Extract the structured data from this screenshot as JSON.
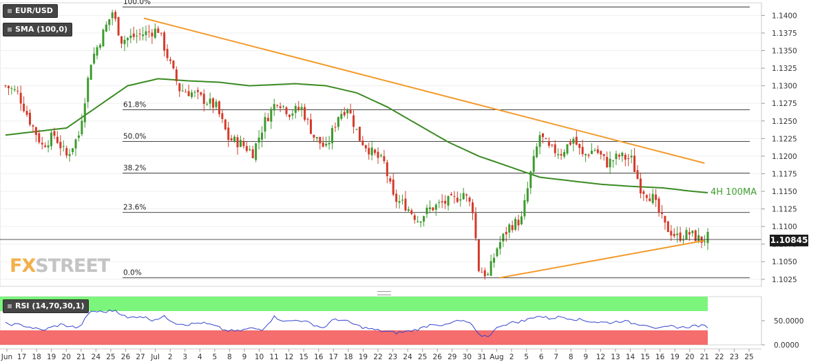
{
  "symbol_label": "EUR/USD",
  "sma_label": "SMA (100,0)",
  "rsi_label": "RSI (14,70,30,1)",
  "ma_annotation": "4H 100MA",
  "current_price": "1.10845",
  "logo": "FXSTREET",
  "colors": {
    "up_candle": "#3d9a2e",
    "down_candle": "#d43a2a",
    "sma": "#3a8a22",
    "trendline": "#f39a2a",
    "rsi_line": "#3344cc",
    "rsi_overbought": "#7cf57c",
    "rsi_oversold": "#f56d6d"
  },
  "chart_data": {
    "type": "candlestick",
    "ylim": [
      1.1015,
      1.1418
    ],
    "price_axis_ticks": [
      "1.1400",
      "1.1375",
      "1.1350",
      "1.1325",
      "1.1300",
      "1.1275",
      "1.1250",
      "1.1225",
      "1.1200",
      "1.1175",
      "1.1150",
      "1.1125",
      "1.1100",
      "1.1075",
      "1.1050",
      "1.1025"
    ],
    "date_ticks": [
      "Jun",
      "17",
      "18",
      "19",
      "20",
      "21",
      "24",
      "25",
      "26",
      "27",
      "Jul",
      "2",
      "3",
      "4",
      "5",
      "8",
      "9",
      "10",
      "11",
      "12",
      "15",
      "16",
      "17",
      "18",
      "19",
      "22",
      "23",
      "24",
      "25",
      "26",
      "29",
      "30",
      "31",
      "Aug",
      "2",
      "5",
      "6",
      "7",
      "8",
      "9",
      "12",
      "13",
      "14",
      "15",
      "16",
      "19",
      "20",
      "21",
      "22",
      "23",
      "25"
    ],
    "fib_levels": [
      {
        "label": "100.0%",
        "price": 1.1412
      },
      {
        "label": "61.8%",
        "price": 1.1266
      },
      {
        "label": "50.0%",
        "price": 1.1221
      },
      {
        "label": "38.2%",
        "price": 1.1176
      },
      {
        "label": "23.6%",
        "price": 1.112
      },
      {
        "label": "0.0%",
        "price": 1.1027
      }
    ],
    "close_anchors": [
      [
        0,
        1.13
      ],
      [
        4,
        1.129
      ],
      [
        8,
        1.125
      ],
      [
        12,
        1.1215
      ],
      [
        16,
        1.123
      ],
      [
        20,
        1.12
      ],
      [
        24,
        1.123
      ],
      [
        28,
        1.1335
      ],
      [
        32,
        1.1375
      ],
      [
        35,
        1.1405
      ],
      [
        38,
        1.1365
      ],
      [
        42,
        1.137
      ],
      [
        46,
        1.1375
      ],
      [
        50,
        1.138
      ],
      [
        54,
        1.133
      ],
      [
        57,
        1.1295
      ],
      [
        61,
        1.129
      ],
      [
        65,
        1.128
      ],
      [
        69,
        1.127
      ],
      [
        73,
        1.1225
      ],
      [
        77,
        1.1218
      ],
      [
        81,
        1.1205
      ],
      [
        85,
        1.125
      ],
      [
        89,
        1.128
      ],
      [
        93,
        1.1262
      ],
      [
        97,
        1.1268
      ],
      [
        101,
        1.1228
      ],
      [
        105,
        1.121
      ],
      [
        109,
        1.1258
      ],
      [
        112,
        1.127
      ],
      [
        116,
        1.1225
      ],
      [
        120,
        1.1205
      ],
      [
        124,
        1.119
      ],
      [
        127,
        1.114
      ],
      [
        131,
        1.113
      ],
      [
        135,
        1.111
      ],
      [
        139,
        1.1125
      ],
      [
        143,
        1.1133
      ],
      [
        147,
        1.1138
      ],
      [
        150,
        1.1148
      ],
      [
        153,
        1.1125
      ],
      [
        155,
        1.104
      ],
      [
        158,
        1.103
      ],
      [
        161,
        1.107
      ],
      [
        165,
        1.11
      ],
      [
        169,
        1.111
      ],
      [
        172,
        1.1175
      ],
      [
        175,
        1.123
      ],
      [
        178,
        1.121
      ],
      [
        182,
        1.1205
      ],
      [
        186,
        1.1225
      ],
      [
        189,
        1.12
      ],
      [
        193,
        1.121
      ],
      [
        197,
        1.119
      ],
      [
        201,
        1.12
      ],
      [
        205,
        1.1195
      ],
      [
        208,
        1.1155
      ],
      [
        212,
        1.114
      ],
      [
        216,
        1.11
      ],
      [
        220,
        1.1085
      ],
      [
        224,
        1.109
      ],
      [
        228,
        1.108
      ],
      [
        230,
        1.1085
      ]
    ],
    "sma_anchors": [
      [
        0,
        1.123
      ],
      [
        20,
        1.124
      ],
      [
        30,
        1.127
      ],
      [
        40,
        1.13
      ],
      [
        50,
        1.131
      ],
      [
        60,
        1.1307
      ],
      [
        70,
        1.1305
      ],
      [
        80,
        1.13
      ],
      [
        95,
        1.1303
      ],
      [
        105,
        1.13
      ],
      [
        115,
        1.129
      ],
      [
        125,
        1.127
      ],
      [
        135,
        1.1245
      ],
      [
        145,
        1.122
      ],
      [
        155,
        1.12
      ],
      [
        165,
        1.1185
      ],
      [
        175,
        1.117
      ],
      [
        185,
        1.1165
      ],
      [
        195,
        1.116
      ],
      [
        205,
        1.1157
      ],
      [
        215,
        1.1155
      ],
      [
        225,
        1.115
      ],
      [
        230,
        1.1148
      ]
    ],
    "trendlines": [
      {
        "from": [
          1.1396,
          "Jun 27"
        ],
        "to": [
          1.119,
          "Aug 21"
        ]
      },
      {
        "from": [
          1.1027,
          "Aug 1"
        ],
        "to": [
          1.108,
          "Aug 21"
        ]
      }
    ],
    "rsi": {
      "levels": [
        70,
        30
      ],
      "ticks": [
        "50.0000",
        "0.0000"
      ],
      "ylim": [
        0,
        100
      ],
      "anchors": [
        [
          0,
          44
        ],
        [
          6,
          40
        ],
        [
          12,
          30
        ],
        [
          18,
          42
        ],
        [
          24,
          35
        ],
        [
          28,
          70
        ],
        [
          32,
          68
        ],
        [
          36,
          72
        ],
        [
          40,
          55
        ],
        [
          44,
          60
        ],
        [
          48,
          52
        ],
        [
          52,
          58
        ],
        [
          56,
          45
        ],
        [
          60,
          42
        ],
        [
          64,
          46
        ],
        [
          68,
          40
        ],
        [
          72,
          30
        ],
        [
          76,
          28
        ],
        [
          80,
          34
        ],
        [
          84,
          32
        ],
        [
          88,
          58
        ],
        [
          92,
          48
        ],
        [
          96,
          52
        ],
        [
          100,
          44
        ],
        [
          104,
          35
        ],
        [
          108,
          54
        ],
        [
          112,
          48
        ],
        [
          116,
          38
        ],
        [
          120,
          32
        ],
        [
          124,
          28
        ],
        [
          128,
          25
        ],
        [
          132,
          28
        ],
        [
          136,
          34
        ],
        [
          140,
          44
        ],
        [
          144,
          40
        ],
        [
          148,
          50
        ],
        [
          152,
          46
        ],
        [
          155,
          20
        ],
        [
          158,
          18
        ],
        [
          162,
          40
        ],
        [
          166,
          46
        ],
        [
          170,
          50
        ],
        [
          174,
          60
        ],
        [
          178,
          55
        ],
        [
          182,
          58
        ],
        [
          186,
          54
        ],
        [
          190,
          50
        ],
        [
          194,
          47
        ],
        [
          198,
          46
        ],
        [
          202,
          50
        ],
        [
          206,
          44
        ],
        [
          210,
          42
        ],
        [
          214,
          33
        ],
        [
          218,
          38
        ],
        [
          222,
          36
        ],
        [
          226,
          40
        ],
        [
          230,
          38
        ]
      ]
    }
  }
}
